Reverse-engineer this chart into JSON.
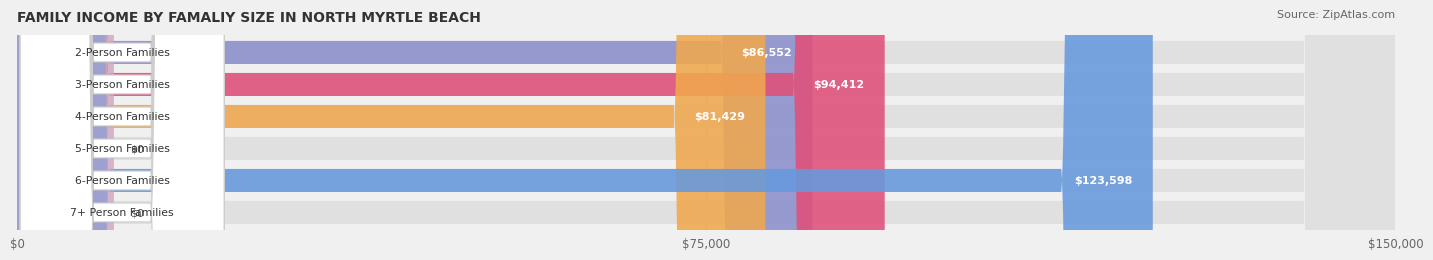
{
  "title": "FAMILY INCOME BY FAMALIY SIZE IN NORTH MYRTLE BEACH",
  "source": "Source: ZipAtlas.com",
  "categories": [
    "2-Person Families",
    "3-Person Families",
    "4-Person Families",
    "5-Person Families",
    "6-Person Families",
    "7+ Person Families"
  ],
  "values": [
    86552,
    94412,
    81429,
    0,
    123598,
    0
  ],
  "bar_colors": [
    "#8b8fcc",
    "#e0507a",
    "#f0a84e",
    "#f0a0a0",
    "#6699dd",
    "#c0a8d0"
  ],
  "value_labels": [
    "$86,552",
    "$94,412",
    "$81,429",
    "$0",
    "$123,598",
    "$0"
  ],
  "xmax": 150000,
  "xticklabels": [
    "$0",
    "$75,000",
    "$150,000"
  ],
  "background_color": "#f0f0f0",
  "bar_bg_color": "#e0e0e0"
}
